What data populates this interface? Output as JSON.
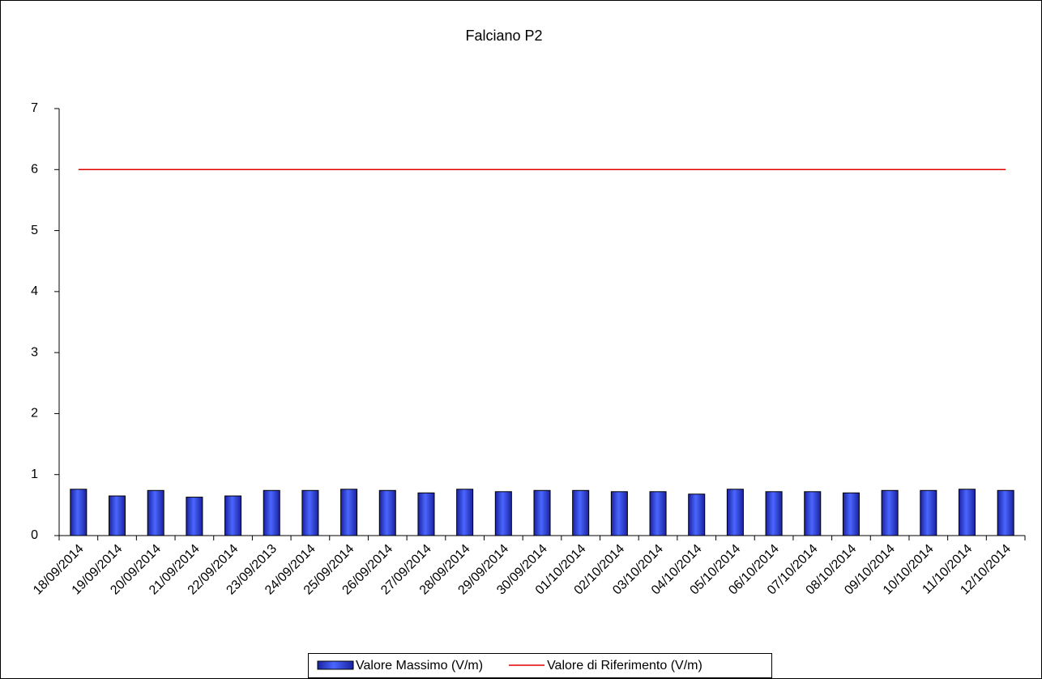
{
  "chart_data": {
    "type": "bar",
    "title": "Falciano P2",
    "categories": [
      "18/09/2014",
      "19/09/2014",
      "20/09/2014",
      "21/09/2014",
      "22/09/2014",
      "23/09/2013",
      "24/09/2014",
      "25/09/2014",
      "26/09/2014",
      "27/09/2014",
      "28/09/2014",
      "29/09/2014",
      "30/09/2014",
      "01/10/2014",
      "02/10/2014",
      "03/10/2014",
      "04/10/2014",
      "05/10/2014",
      "06/10/2014",
      "07/10/2014",
      "08/10/2014",
      "09/10/2014",
      "10/10/2014",
      "11/10/2014",
      "12/10/2014"
    ],
    "series": [
      {
        "name": "Valore Massimo (V/m)",
        "type": "bar",
        "color": "#3344dd",
        "values": [
          0.76,
          0.65,
          0.74,
          0.63,
          0.65,
          0.74,
          0.74,
          0.76,
          0.74,
          0.7,
          0.76,
          0.72,
          0.74,
          0.74,
          0.72,
          0.72,
          0.68,
          0.76,
          0.72,
          0.72,
          0.7,
          0.74,
          0.74,
          0.76,
          0.74
        ]
      },
      {
        "name": "Valore di Riferimento (V/m)",
        "type": "line",
        "color": "#e00000",
        "values": [
          6,
          6,
          6,
          6,
          6,
          6,
          6,
          6,
          6,
          6,
          6,
          6,
          6,
          6,
          6,
          6,
          6,
          6,
          6,
          6,
          6,
          6,
          6,
          6,
          6
        ]
      }
    ],
    "ylim": [
      0,
      7
    ],
    "yticks": [
      0,
      1,
      2,
      3,
      4,
      5,
      6,
      7
    ],
    "legend": "bottom"
  }
}
